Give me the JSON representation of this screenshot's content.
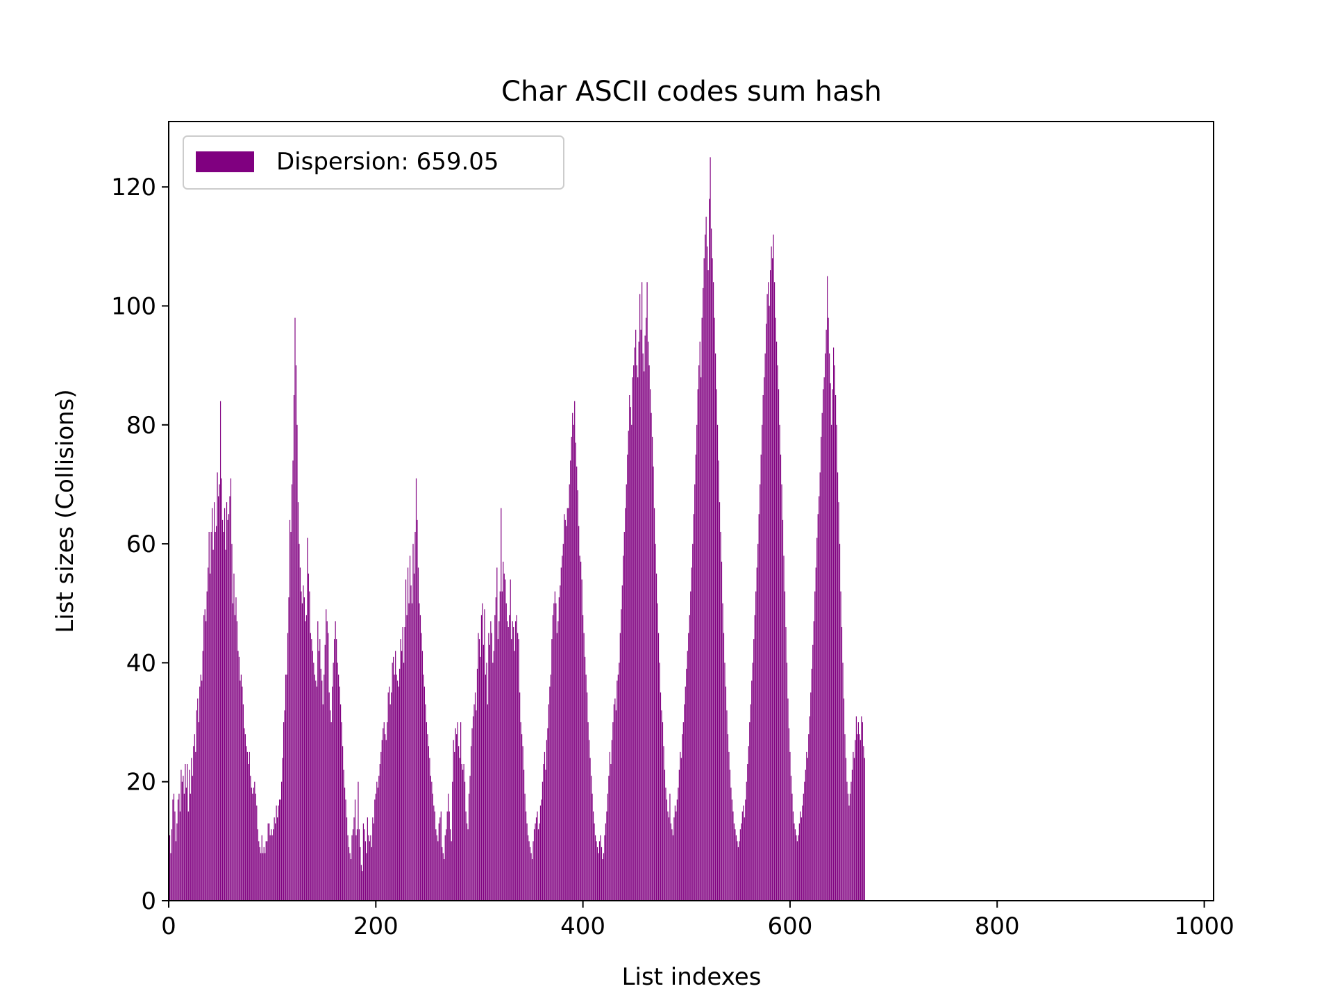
{
  "chart_data": {
    "type": "bar",
    "title": "Char ASCII codes sum hash",
    "xlabel": "List indexes",
    "ylabel": "List sizes (Collisions)",
    "xlim": [
      0,
      1009
    ],
    "ylim": [
      0,
      131
    ],
    "x_ticks": [
      0,
      200,
      400,
      600,
      800,
      1000
    ],
    "y_ticks": [
      0,
      20,
      40,
      60,
      80,
      100,
      120
    ],
    "grid": false,
    "legend_position": "top-left",
    "bar_color": "#800080",
    "series": [
      {
        "name": "Dispersion: 659.05",
        "x_start": 0,
        "x_step": 1,
        "values": [
          13,
          11,
          8,
          12,
          17,
          18,
          15,
          10,
          13,
          17,
          18,
          15,
          22,
          20,
          21,
          18,
          23,
          19,
          23,
          15,
          22,
          18,
          24,
          21,
          26,
          28,
          25,
          32,
          34,
          30,
          36,
          38,
          37,
          42,
          48,
          49,
          47,
          52,
          56,
          62,
          55,
          62,
          66,
          59,
          67,
          62,
          63,
          72,
          68,
          70,
          84,
          71,
          64,
          62,
          66,
          59,
          67,
          64,
          65,
          68,
          71,
          60,
          50,
          55,
          48,
          51,
          47,
          42,
          41,
          37,
          38,
          36,
          33,
          29,
          28,
          26,
          25,
          23,
          25,
          21,
          19,
          18,
          19,
          20,
          18,
          16,
          12,
          10,
          9,
          8,
          11,
          8,
          9,
          8,
          10,
          10,
          13,
          13,
          11,
          12,
          11,
          12,
          14,
          13,
          16,
          14,
          16,
          17,
          17,
          20,
          24,
          30,
          32,
          38,
          38,
          45,
          51,
          64,
          62,
          70,
          74,
          85,
          98,
          90,
          80,
          67,
          60,
          56,
          52,
          50,
          53,
          51,
          47,
          48,
          61,
          55,
          52,
          45,
          44,
          42,
          40,
          38,
          37,
          36,
          47,
          42,
          44,
          39,
          37,
          33,
          38,
          43,
          49,
          47,
          45,
          35,
          32,
          30,
          36,
          40,
          44,
          47,
          44,
          40,
          38,
          36,
          33,
          30,
          26,
          22,
          19,
          17,
          14,
          11,
          9,
          8,
          7,
          11,
          12,
          14,
          17,
          11,
          12,
          20,
          12,
          9,
          6,
          5,
          13,
          12,
          10,
          8,
          14,
          11,
          10,
          11,
          9,
          14,
          13,
          17,
          18,
          20,
          19,
          21,
          23,
          25,
          27,
          29,
          30,
          28,
          27,
          30,
          35,
          36,
          33,
          35,
          40,
          41,
          38,
          42,
          38,
          37,
          36,
          39,
          44,
          42,
          46,
          40,
          46,
          54,
          48,
          56,
          50,
          58,
          53,
          50,
          60,
          55,
          62,
          71,
          64,
          56,
          50,
          48,
          45,
          42,
          38,
          36,
          33,
          30,
          28,
          26,
          24,
          21,
          20,
          18,
          16,
          15,
          12,
          11,
          10,
          13,
          14,
          15,
          9,
          8,
          7,
          11,
          12,
          15,
          18,
          15,
          12,
          10,
          20,
          27,
          25,
          29,
          28,
          30,
          26,
          24,
          30,
          23,
          22,
          23,
          20,
          15,
          13,
          12,
          18,
          21,
          26,
          29,
          31,
          33,
          35,
          32,
          39,
          45,
          44,
          41,
          48,
          50,
          43,
          49,
          38,
          40,
          33,
          45,
          43,
          47,
          45,
          40,
          42,
          48,
          51,
          56,
          44,
          47,
          52,
          66,
          52,
          57,
          55,
          54,
          50,
          47,
          46,
          48,
          54,
          44,
          47,
          46,
          42,
          47,
          48,
          45,
          44,
          35,
          30,
          28,
          26,
          22,
          18,
          15,
          13,
          11,
          10,
          9,
          8,
          7,
          10,
          12,
          13,
          14,
          15,
          12,
          13,
          16,
          17,
          20,
          23,
          25,
          22,
          27,
          29,
          33,
          36,
          38,
          44,
          48,
          50,
          52,
          50,
          45,
          47,
          51,
          53,
          56,
          58,
          60,
          65,
          64,
          63,
          66,
          66,
          70,
          74,
          78,
          82,
          80,
          84,
          77,
          73,
          69,
          63,
          58,
          57,
          54,
          48,
          45,
          41,
          38,
          35,
          30,
          27,
          24,
          21,
          18,
          15,
          13,
          11,
          10,
          9,
          8,
          10,
          11,
          9,
          7,
          8,
          11,
          13,
          15,
          18,
          21,
          25,
          23,
          27,
          30,
          33,
          34,
          32,
          37,
          38,
          40,
          45,
          49,
          53,
          58,
          62,
          66,
          70,
          75,
          79,
          85,
          83,
          80,
          88,
          90,
          93,
          96,
          90,
          88,
          94,
          102,
          96,
          104,
          92,
          89,
          95,
          98,
          104,
          94,
          90,
          86,
          82,
          78,
          73,
          66,
          60,
          55,
          50,
          45,
          40,
          35,
          32,
          30,
          26,
          22,
          19,
          17,
          15,
          14,
          18,
          13,
          12,
          11,
          14,
          16,
          15,
          17,
          19,
          22,
          25,
          24,
          28,
          30,
          33,
          36,
          39,
          42,
          45,
          48,
          52,
          56,
          60,
          65,
          70,
          75,
          80,
          86,
          90,
          94,
          88,
          98,
          103,
          108,
          112,
          115,
          110,
          106,
          118,
          125,
          113,
          108,
          104,
          98,
          92,
          86,
          80,
          74,
          67,
          62,
          57,
          50,
          45,
          40,
          36,
          32,
          28,
          25,
          22,
          19,
          17,
          15,
          13,
          12,
          11,
          10,
          9,
          10,
          12,
          13,
          15,
          16,
          14,
          17,
          20,
          23,
          26,
          30,
          33,
          37,
          40,
          44,
          48,
          52,
          56,
          60,
          65,
          70,
          75,
          80,
          85,
          88,
          92,
          97,
          102,
          104,
          100,
          106,
          110,
          108,
          112,
          104,
          98,
          94,
          90,
          86,
          80,
          75,
          70,
          64,
          58,
          52,
          46,
          40,
          34,
          29,
          25,
          21,
          18,
          15,
          13,
          12,
          11,
          10,
          11,
          13,
          15,
          14,
          16,
          18,
          20,
          22,
          25,
          24,
          28,
          31,
          35,
          39,
          43,
          47,
          52,
          56,
          61,
          65,
          68,
          72,
          78,
          82,
          86,
          88,
          92,
          96,
          105,
          98,
          92,
          87,
          80,
          86,
          93,
          90,
          85,
          80,
          72,
          67,
          60,
          52,
          46,
          40,
          34,
          28,
          24,
          20,
          18,
          16,
          18,
          20,
          22,
          25,
          24,
          27,
          31,
          28,
          30,
          28,
          27,
          31,
          30,
          26,
          24
        ]
      }
    ]
  }
}
